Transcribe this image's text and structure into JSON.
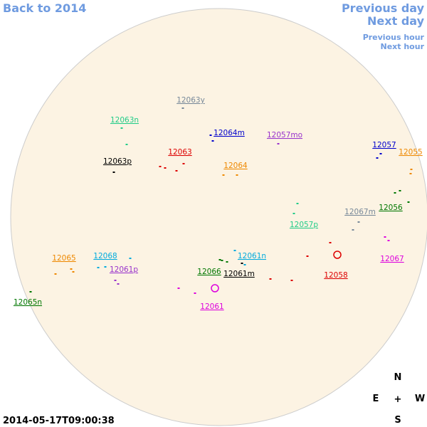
{
  "nav": {
    "back": "Back to 2014",
    "previous_day": "Previous day",
    "next_day": "Next day",
    "previous_hour": "Previous hour",
    "next_hour": "Next hour"
  },
  "timestamp": "2014-05-17T09:00:38",
  "compass": {
    "north": "N",
    "east": "E",
    "center": "+",
    "west": "W",
    "south": "S"
  },
  "regions": [
    {
      "label": "12063y",
      "color": "#778899"
    },
    {
      "label": "12063n",
      "color": "#22cc88"
    },
    {
      "label": "12064m",
      "color": "#0000cc"
    },
    {
      "label": "12057mo",
      "color": "#9933cc"
    },
    {
      "label": "12057",
      "color": "#0000cc"
    },
    {
      "label": "12055",
      "color": "#ee8800"
    },
    {
      "label": "12063p",
      "color": "#000000"
    },
    {
      "label": "12063",
      "color": "#dd0000"
    },
    {
      "label": "12064",
      "color": "#ee8800"
    },
    {
      "label": "12067m",
      "color": "#778899"
    },
    {
      "label": "12056",
      "color": "#007700"
    },
    {
      "label": "12057p",
      "color": "#22cc88"
    },
    {
      "label": "12061n",
      "color": "#00aadd"
    },
    {
      "label": "12068",
      "color": "#00aadd"
    },
    {
      "label": "12065",
      "color": "#ee8800"
    },
    {
      "label": "12067",
      "color": "#dd00dd"
    },
    {
      "label": "12061p",
      "color": "#9933cc"
    },
    {
      "label": "12066",
      "color": "#007700"
    },
    {
      "label": "12061m",
      "color": "#000000"
    },
    {
      "label": "12058",
      "color": "#dd0000"
    },
    {
      "label": "12061",
      "color": "#dd00dd"
    },
    {
      "label": "12065n",
      "color": "#007700"
    }
  ]
}
